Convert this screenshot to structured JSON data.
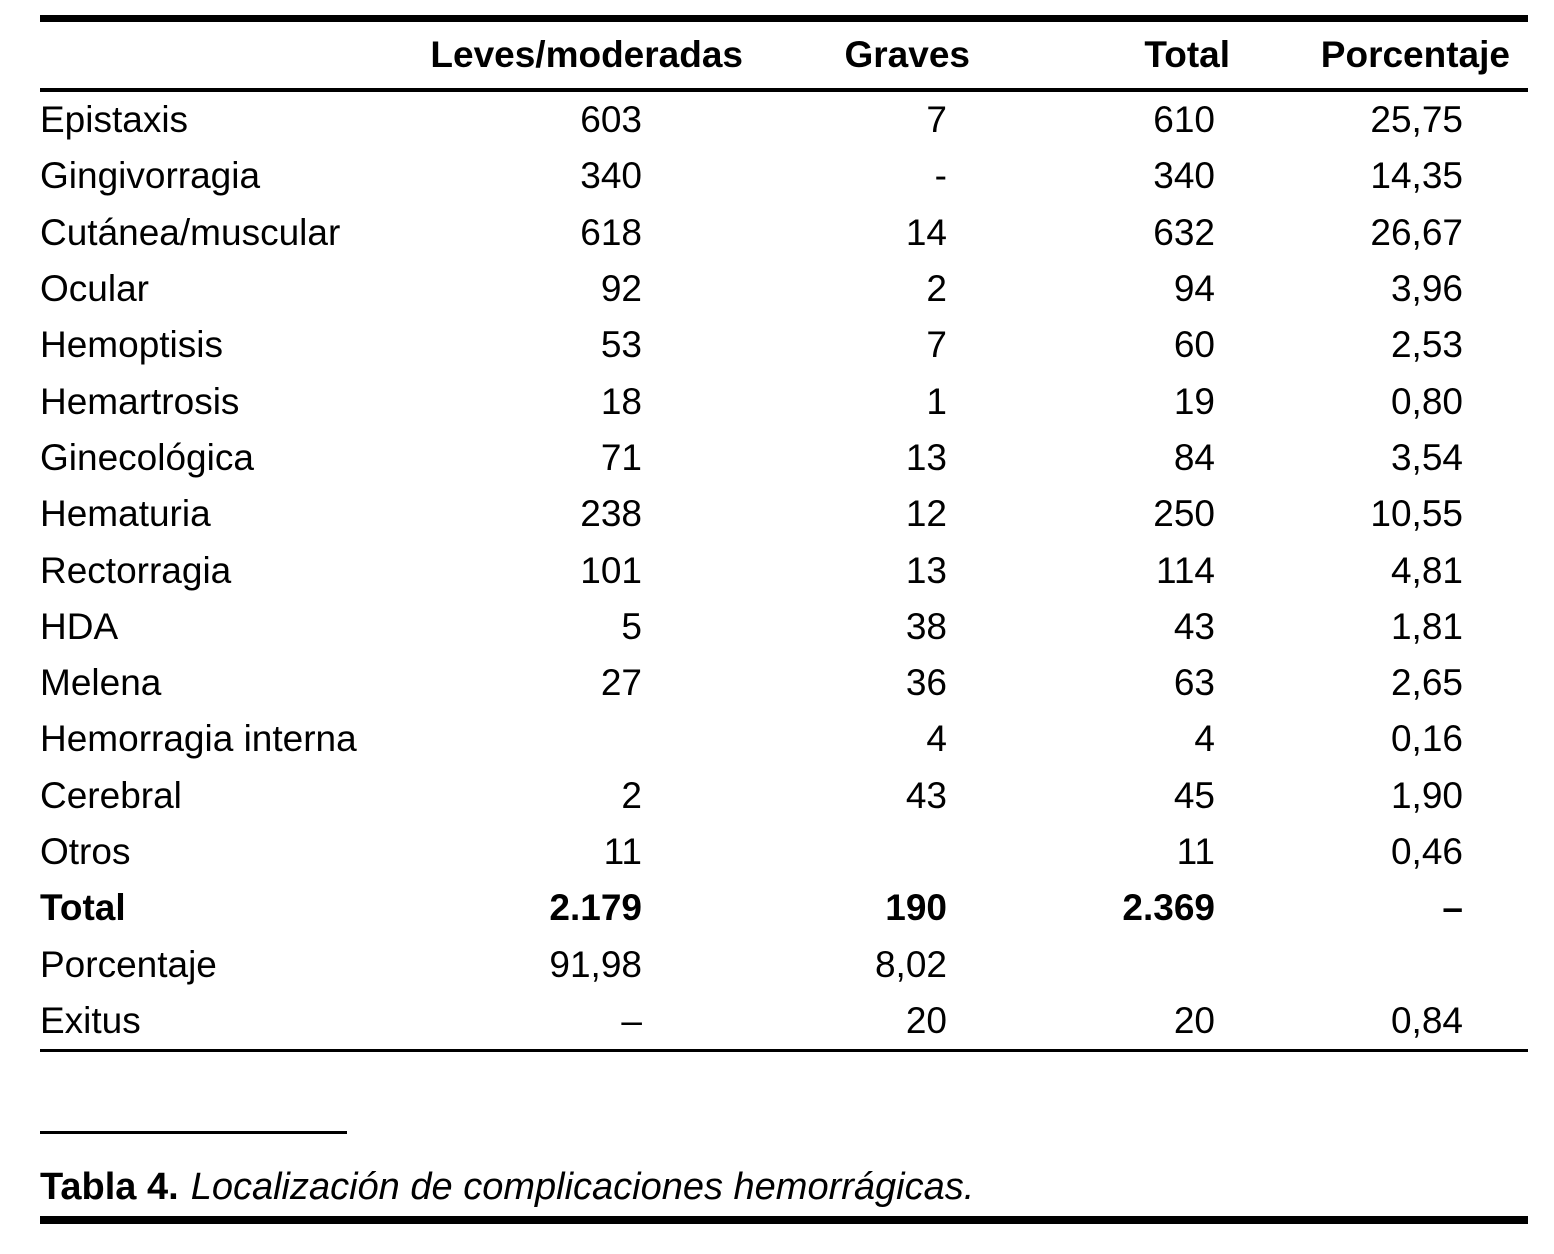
{
  "header": {
    "col_label": "",
    "col_leves": "Leves/moderadas",
    "col_graves": "Graves",
    "col_total": "Total",
    "col_porcentaje": "Porcentaje"
  },
  "rows": [
    {
      "label": "Epistaxis",
      "leves": "603",
      "graves": "7",
      "total": "610",
      "porcentaje": "25,75",
      "bold": false
    },
    {
      "label": "Gingivorragia",
      "leves": "340",
      "graves": "-",
      "total": "340",
      "porcentaje": "14,35",
      "bold": false
    },
    {
      "label": "Cutánea/muscular",
      "leves": "618",
      "graves": "14",
      "total": "632",
      "porcentaje": "26,67",
      "bold": false
    },
    {
      "label": "Ocular",
      "leves": "92",
      "graves": "2",
      "total": "94",
      "porcentaje": "3,96",
      "bold": false
    },
    {
      "label": "Hemoptisis",
      "leves": "53",
      "graves": "7",
      "total": "60",
      "porcentaje": "2,53",
      "bold": false
    },
    {
      "label": "Hemartrosis",
      "leves": "18",
      "graves": "1",
      "total": "19",
      "porcentaje": "0,80",
      "bold": false
    },
    {
      "label": "Ginecológica",
      "leves": "71",
      "graves": "13",
      "total": "84",
      "porcentaje": "3,54",
      "bold": false
    },
    {
      "label": "Hematuria",
      "leves": "238",
      "graves": "12",
      "total": "250",
      "porcentaje": "10,55",
      "bold": false
    },
    {
      "label": "Rectorragia",
      "leves": "101",
      "graves": "13",
      "total": "114",
      "porcentaje": "4,81",
      "bold": false
    },
    {
      "label": "HDA",
      "leves": "5",
      "graves": "38",
      "total": "43",
      "porcentaje": "1,81",
      "bold": false
    },
    {
      "label": "Melena",
      "leves": "27",
      "graves": "36",
      "total": "63",
      "porcentaje": "2,65",
      "bold": false
    },
    {
      "label": "Hemorragia interna",
      "leves": "",
      "graves": "4",
      "total": "4",
      "porcentaje": "0,16",
      "bold": false
    },
    {
      "label": "Cerebral",
      "leves": "2",
      "graves": "43",
      "total": "45",
      "porcentaje": "1,90",
      "bold": false
    },
    {
      "label": "Otros",
      "leves": "11",
      "graves": "",
      "total": "11",
      "porcentaje": "0,46",
      "bold": false
    },
    {
      "label": "Total",
      "leves": "2.179",
      "graves": "190",
      "total": "2.369",
      "porcentaje": "–",
      "bold": true
    },
    {
      "label": "Porcentaje",
      "leves": "91,98",
      "graves": "8,02",
      "total": "",
      "porcentaje": "",
      "bold": false
    },
    {
      "label": "Exitus",
      "leves": "–",
      "graves": "20",
      "total": "20",
      "porcentaje": "0,84",
      "bold": false
    }
  ],
  "caption": {
    "label": "Tabla 4.",
    "text": "Localización de complicaciones hemorrágicas."
  },
  "colors": {
    "text": "#000000",
    "background": "#ffffff",
    "rule": "#000000"
  }
}
